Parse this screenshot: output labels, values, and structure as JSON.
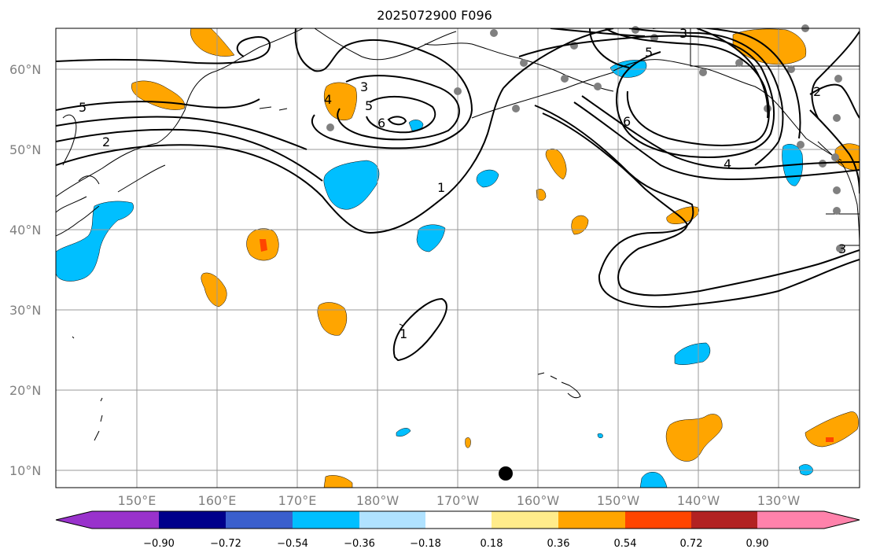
{
  "title": "2025072900 F096",
  "lat_labels": [
    "60°N",
    "50°N",
    "40°N",
    "30°N",
    "20°N",
    "10°N"
  ],
  "lon_labels": [
    "150°E",
    "160°E",
    "170°E",
    "180°W",
    "170°W",
    "160°W",
    "150°W",
    "140°W",
    "130°W"
  ],
  "colorbar": {
    "ticks": [
      "−0.90",
      "−0.72",
      "−0.54",
      "−0.36",
      "−0.18",
      "0.18",
      "0.36",
      "0.54",
      "0.72",
      "0.90"
    ],
    "colors": [
      "#9932cc",
      "#00008b",
      "#3a5fcd",
      "#00bfff",
      "#b0e2ff",
      "#ffffff",
      "#ffec8b",
      "#ffa500",
      "#ff4500",
      "#b22222",
      "#ff82ab"
    ]
  },
  "contour_labels": [
    "5",
    "2",
    "4",
    "3",
    "5",
    "6",
    "1",
    "3",
    "5",
    "6",
    "4",
    "2",
    "1",
    "3"
  ],
  "colors": {
    "orange": "#ffa500",
    "cyan": "#00bfff",
    "red": "#ff4500",
    "grid": "#999999",
    "station": "#808080"
  }
}
